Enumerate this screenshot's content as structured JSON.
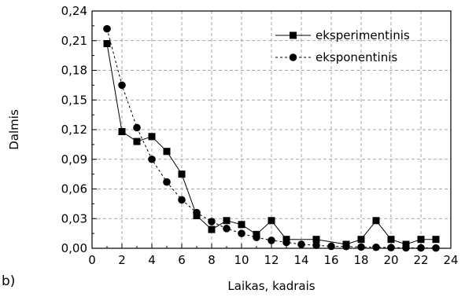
{
  "panel_label": "b)",
  "chart_data": {
    "type": "line",
    "title": "",
    "xlabel": "Laikas, kadrais",
    "ylabel": "Dalmis",
    "xlim": [
      0,
      24
    ],
    "ylim": [
      0,
      0.24
    ],
    "x_ticks": [
      0,
      2,
      4,
      6,
      8,
      10,
      12,
      14,
      16,
      18,
      20,
      22,
      24
    ],
    "x_tick_labels": [
      "0",
      "2",
      "4",
      "6",
      "8",
      "10",
      "12",
      "14",
      "16",
      "18",
      "20",
      "22",
      "24"
    ],
    "y_ticks": [
      0,
      0.03,
      0.06,
      0.09,
      0.12,
      0.15,
      0.18,
      0.21,
      0.24
    ],
    "y_tick_labels": [
      "0,00",
      "0,03",
      "0,06",
      "0,09",
      "0,12",
      "0,15",
      "0,18",
      "0,21",
      "0,24"
    ],
    "grid": true,
    "legend_position": "top-right",
    "series": [
      {
        "name": "eksperimentinis",
        "marker": "square",
        "line_style": "solid",
        "color": "#000000",
        "x": [
          1,
          2,
          3,
          4,
          5,
          6,
          7,
          8,
          9,
          10,
          11,
          12,
          13,
          15,
          17,
          18,
          19,
          20,
          21,
          22,
          23
        ],
        "y": [
          0.207,
          0.118,
          0.108,
          0.113,
          0.098,
          0.075,
          0.033,
          0.019,
          0.028,
          0.024,
          0.014,
          0.028,
          0.009,
          0.009,
          0.004,
          0.009,
          0.028,
          0.009,
          0.004,
          0.009,
          0.009
        ]
      },
      {
        "name": "eksponentinis",
        "marker": "circle",
        "line_style": "dashed",
        "color": "#000000",
        "x": [
          1,
          2,
          3,
          4,
          5,
          6,
          7,
          8,
          9,
          10,
          11,
          12,
          13,
          14,
          15,
          16,
          17,
          18,
          19,
          20,
          21,
          22,
          23
        ],
        "y": [
          0.222,
          0.165,
          0.122,
          0.09,
          0.067,
          0.049,
          0.036,
          0.027,
          0.02,
          0.015,
          0.011,
          0.008,
          0.006,
          0.004,
          0.003,
          0.002,
          0.0018,
          0.0013,
          0.001,
          0.0007,
          0.0005,
          0.0004,
          0.0003
        ]
      }
    ]
  }
}
